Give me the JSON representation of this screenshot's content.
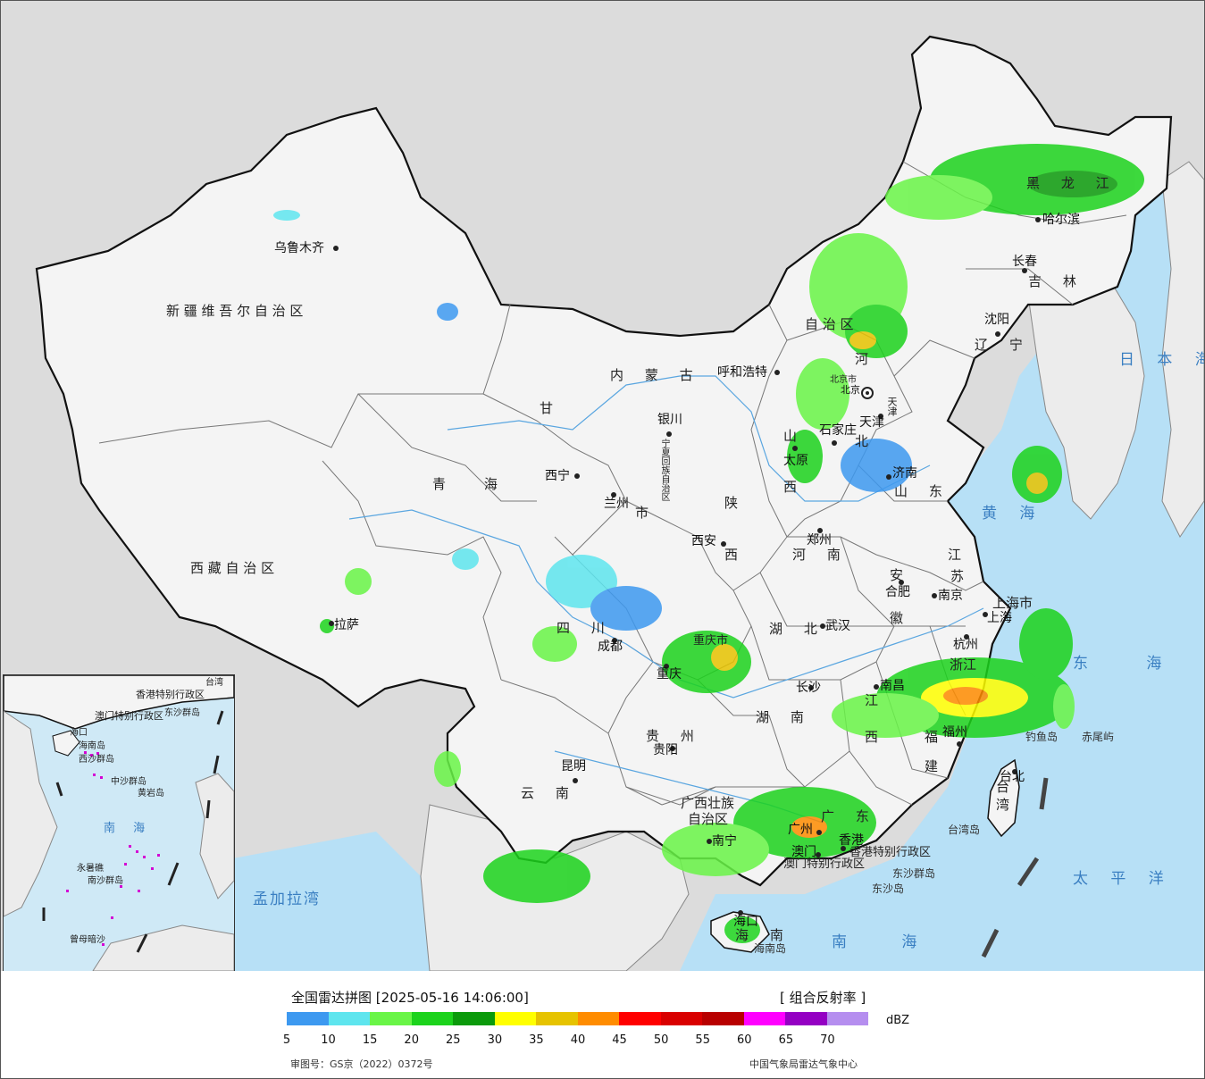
{
  "map": {
    "colors": {
      "land": "#f4f4f4",
      "outside": "#dcdcdc",
      "sea": "#b7e0f6",
      "border": "#111111",
      "province": "#666666",
      "river": "#5aa6e0"
    },
    "provinces": [
      {
        "key": "xinjiang",
        "text": "新 疆 维 吾 尔 自 治 区"
      },
      {
        "key": "xizang",
        "text": "西 藏 自 治 区"
      },
      {
        "key": "qinghai",
        "text": "青         海"
      },
      {
        "key": "gansu",
        "text": "甘"
      },
      {
        "key": "neimeng",
        "text": "内     蒙     古"
      },
      {
        "key": "neimeng2",
        "text": "自 治 区"
      },
      {
        "key": "heilongjiang",
        "text": "黑     龙     江"
      },
      {
        "key": "jilin",
        "text": "吉     林"
      },
      {
        "key": "liaoning",
        "text": "辽     宁"
      },
      {
        "key": "hebei",
        "text": "河"
      },
      {
        "key": "hebei2",
        "text": "北"
      },
      {
        "key": "shanxi",
        "text": "山"
      },
      {
        "key": "shanxi2",
        "text": "西"
      },
      {
        "key": "shandong",
        "text": "山     东"
      },
      {
        "key": "henan",
        "text": "河     南"
      },
      {
        "key": "shaanxi",
        "text": "陕"
      },
      {
        "key": "shaanxi2",
        "text": "西"
      },
      {
        "key": "ningxia",
        "text": "宁夏回族自治区"
      },
      {
        "key": "jiangsu",
        "text": "江"
      },
      {
        "key": "jiangsu2",
        "text": "苏"
      },
      {
        "key": "anhui",
        "text": "安"
      },
      {
        "key": "anhui2",
        "text": "徽"
      },
      {
        "key": "hubei",
        "text": "湖     北"
      },
      {
        "key": "sichuan",
        "text": "四     川"
      },
      {
        "key": "chongqing",
        "text": "重庆市"
      },
      {
        "key": "zhejiang",
        "text": "浙江"
      },
      {
        "key": "jiangxi",
        "text": "江"
      },
      {
        "key": "jiangxi2",
        "text": "西"
      },
      {
        "key": "hunan",
        "text": "湖     南"
      },
      {
        "key": "guizhou",
        "text": "贵     州"
      },
      {
        "key": "yunnan",
        "text": "云     南"
      },
      {
        "key": "fujian",
        "text": "福"
      },
      {
        "key": "fujian2",
        "text": "建"
      },
      {
        "key": "guangxi",
        "text": "广西壮族"
      },
      {
        "key": "guangxi2",
        "text": "自治区"
      },
      {
        "key": "guangdong",
        "text": "广     东"
      },
      {
        "key": "hainan",
        "text": "海     南"
      },
      {
        "key": "taiwan",
        "text": "台 湾"
      },
      {
        "key": "shanghai",
        "text": "上海市"
      },
      {
        "key": "tianjin",
        "text": "天津"
      },
      {
        "key": "beijing",
        "text": "北京市"
      },
      {
        "key": "hk",
        "text": "香港特别行政区"
      },
      {
        "key": "macao",
        "text": "澳门特别行政区"
      },
      {
        "key": "shi",
        "text": "市"
      }
    ],
    "cities": [
      {
        "key": "urumqi",
        "text": "乌鲁木齐"
      },
      {
        "key": "lhasa",
        "text": "拉萨"
      },
      {
        "key": "xining",
        "text": "西宁"
      },
      {
        "key": "lanzhou",
        "text": "兰州"
      },
      {
        "key": "yinchuan",
        "text": "银川"
      },
      {
        "key": "huhehaote",
        "text": "呼和浩特"
      },
      {
        "key": "harbin",
        "text": "哈尔滨"
      },
      {
        "key": "changchun",
        "text": "长春"
      },
      {
        "key": "shenyang",
        "text": "沈阳"
      },
      {
        "key": "beijing",
        "text": "北京"
      },
      {
        "key": "tianjin",
        "text": "天津"
      },
      {
        "key": "shijiazhuang",
        "text": "石家庄"
      },
      {
        "key": "taiyuan",
        "text": "太原"
      },
      {
        "key": "jinan",
        "text": "济南"
      },
      {
        "key": "zhengzhou",
        "text": "郑州"
      },
      {
        "key": "xian",
        "text": "西安"
      },
      {
        "key": "chengdu",
        "text": "成都"
      },
      {
        "key": "chongqing",
        "text": "重庆"
      },
      {
        "key": "wuhan",
        "text": "武汉"
      },
      {
        "key": "hefei",
        "text": "合肥"
      },
      {
        "key": "nanjing",
        "text": "南京"
      },
      {
        "key": "shanghai",
        "text": "上海"
      },
      {
        "key": "hangzhou",
        "text": "杭州"
      },
      {
        "key": "nanchang",
        "text": "南昌"
      },
      {
        "key": "changsha",
        "text": "长沙"
      },
      {
        "key": "guiyang",
        "text": "贵阳"
      },
      {
        "key": "kunming",
        "text": "昆明"
      },
      {
        "key": "fuzhou",
        "text": "福州"
      },
      {
        "key": "taibei",
        "text": "台北"
      },
      {
        "key": "nanning",
        "text": "南宁"
      },
      {
        "key": "guangzhou",
        "text": "广州"
      },
      {
        "key": "hongkong",
        "text": "香港"
      },
      {
        "key": "macau",
        "text": "澳门"
      },
      {
        "key": "haikou",
        "text": "海口"
      }
    ],
    "seas": [
      {
        "key": "japan",
        "text": "日 本 海"
      },
      {
        "key": "yellow",
        "text": "黄 海"
      },
      {
        "key": "east",
        "text": "东 海"
      },
      {
        "key": "pacific",
        "text": "太 平 洋"
      },
      {
        "key": "south",
        "text": "南 海"
      },
      {
        "key": "bengal",
        "text": "孟加拉湾"
      }
    ],
    "islands": [
      {
        "key": "diaoyu",
        "text": "钓鱼岛"
      },
      {
        "key": "chiwei",
        "text": "赤尾屿"
      },
      {
        "key": "taiwan_island",
        "text": "台湾岛"
      },
      {
        "key": "dongsha",
        "text": "东沙群岛"
      },
      {
        "key": "dongsha2",
        "text": "东沙岛"
      },
      {
        "key": "hainan_island",
        "text": "海南岛"
      }
    ],
    "inset": {
      "labels": [
        {
          "key": "i_hk",
          "text": "香港特别行政区"
        },
        {
          "key": "i_mo",
          "text": "澳门特别行政区"
        },
        {
          "key": "i_taiwan",
          "text": "台湾"
        },
        {
          "key": "i_haikou",
          "text": "海口"
        },
        {
          "key": "i_hainan",
          "text": "海南岛"
        },
        {
          "key": "i_dongsha",
          "text": "东沙群岛"
        },
        {
          "key": "i_xisha",
          "text": "西沙群岛"
        },
        {
          "key": "i_zhongsha",
          "text": "中沙群岛"
        },
        {
          "key": "i_huangyan",
          "text": "黄岩岛"
        },
        {
          "key": "i_nansha",
          "text": "南沙群岛"
        },
        {
          "key": "i_yongshu",
          "text": "永暑礁"
        },
        {
          "key": "i_zengmu",
          "text": "曾母暗沙"
        },
        {
          "key": "i_sea",
          "text": "南 海"
        }
      ]
    }
  },
  "legend": {
    "title": "全国雷达拼图",
    "timestamp": "[2025-05-16 14:06:00]",
    "product": "[ 组合反射率 ]",
    "unit": "dBZ",
    "review_number": "审图号：GS京（2022）0372号",
    "source": "中国气象局雷达气象中心",
    "swatches": [
      "#3d99f0",
      "#5ee5ee",
      "#69f547",
      "#1cd31c",
      "#0b9a0b",
      "#ffff00",
      "#e6c300",
      "#ff8c00",
      "#ff0000",
      "#d90000",
      "#b80000",
      "#ff00ff",
      "#9400c3",
      "#b58eef"
    ],
    "ticks": [
      "5",
      "10",
      "15",
      "20",
      "25",
      "30",
      "35",
      "40",
      "45",
      "50",
      "55",
      "60",
      "65",
      "70"
    ]
  }
}
